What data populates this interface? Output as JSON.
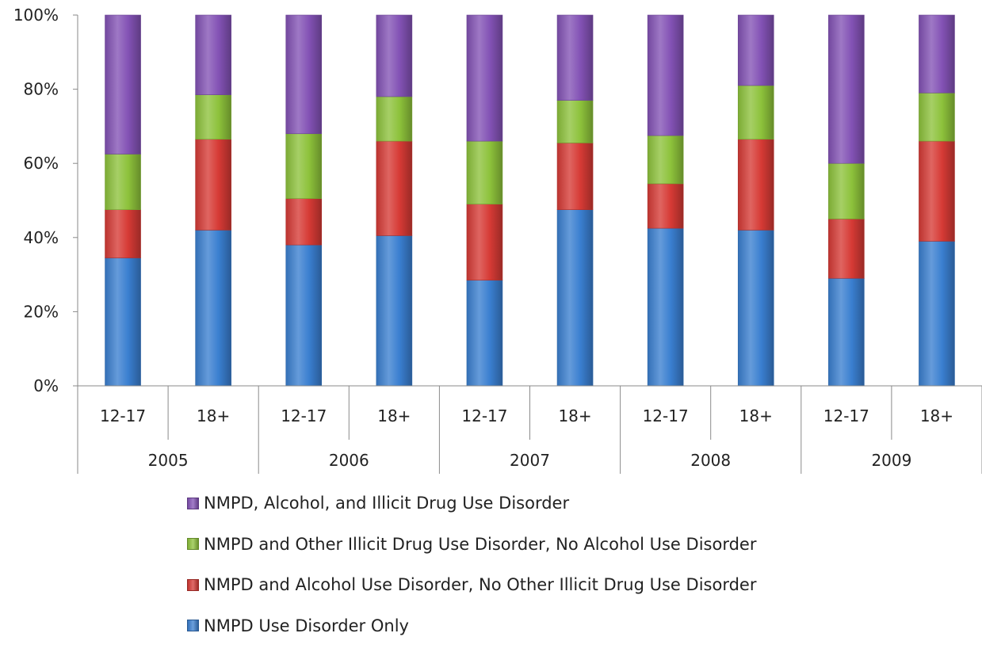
{
  "chart_data": {
    "type": "bar",
    "stacked": true,
    "percent_stacked": true,
    "categories": [
      "12-17",
      "18+",
      "12-17",
      "18+",
      "12-17",
      "18+",
      "12-17",
      "18+",
      "12-17",
      "18+"
    ],
    "groups": [
      {
        "label": "2005",
        "span": 2
      },
      {
        "label": "2006",
        "span": 2
      },
      {
        "label": "2007",
        "span": 2
      },
      {
        "label": "2008",
        "span": 2
      },
      {
        "label": "2009",
        "span": 2
      }
    ],
    "series": [
      {
        "name": "NMPD Use Disorder Only",
        "color": "#3a7fd0",
        "values": [
          34.5,
          42,
          38,
          40.5,
          28.5,
          47.5,
          42.5,
          42,
          29,
          39
        ]
      },
      {
        "name": "NMPD and Alcohol Use Disorder, No Other Illicit Drug Use Disorder",
        "color": "#d63a35",
        "values": [
          13,
          24.5,
          12.5,
          25.5,
          20.5,
          18,
          12,
          24.5,
          16,
          27
        ]
      },
      {
        "name": "NMPD and Other Illicit Drug Use Disorder, No Alcohol Use Disorder",
        "color": "#8dc23b",
        "values": [
          15,
          12,
          17.5,
          12,
          17,
          11.5,
          13,
          14.5,
          15,
          13
        ]
      },
      {
        "name": "NMPD, Alcohol, and Illicit Drug Use Disorder",
        "color": "#8352b5",
        "values": [
          37.5,
          21.5,
          32,
          22,
          34,
          23,
          32.5,
          19,
          40,
          21
        ]
      }
    ],
    "legend_order": [
      3,
      2,
      1,
      0
    ],
    "title": "",
    "xlabel": "",
    "ylabel": "",
    "ylim": [
      0,
      100
    ],
    "yticks": [
      "0%",
      "20%",
      "40%",
      "60%",
      "80%",
      "100%"
    ],
    "legend_position": "bottom"
  }
}
